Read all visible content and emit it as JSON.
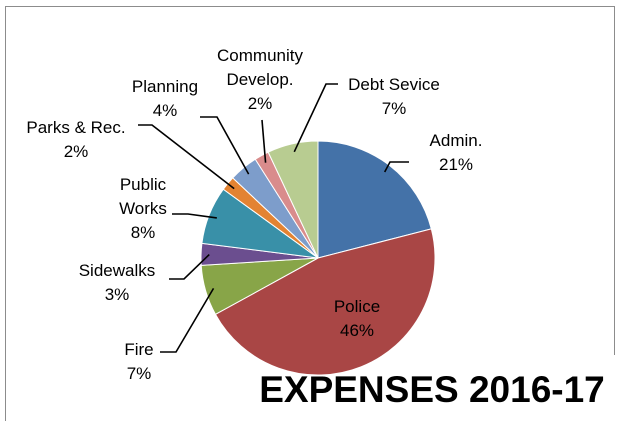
{
  "chart_data": {
    "type": "pie",
    "title": "EXPENSES 2016-17",
    "start_angle_deg": 0,
    "direction": "clockwise",
    "slices": [
      {
        "label": "Admin.",
        "label_lines": [
          "Admin.",
          "21%"
        ],
        "value": 21,
        "color": "#4472A8"
      },
      {
        "label": "Police",
        "label_lines": [
          "Police",
          "46%"
        ],
        "value": 46,
        "color": "#A94645"
      },
      {
        "label": "Fire",
        "label_lines": [
          "Fire",
          "7%"
        ],
        "value": 7,
        "color": "#88A548"
      },
      {
        "label": "Sidewalks",
        "label_lines": [
          "Sidewalks",
          "3%"
        ],
        "value": 3,
        "color": "#6B4E8F"
      },
      {
        "label": "Public Works",
        "label_lines": [
          "Public",
          "Works",
          "8%"
        ],
        "value": 8,
        "color": "#3990A8"
      },
      {
        "label": "Parks & Rec.",
        "label_lines": [
          "Parks & Rec.",
          "2%"
        ],
        "value": 2,
        "color": "#E38332"
      },
      {
        "label": "Planning",
        "label_lines": [
          "Planning",
          "4%"
        ],
        "value": 4,
        "color": "#7D9DCB"
      },
      {
        "label": "Community Develop.",
        "label_lines": [
          "Community",
          "Develop.",
          "2%"
        ],
        "value": 2,
        "color": "#D98C8C"
      },
      {
        "label": "Debt Sevice",
        "label_lines": [
          "Debt Sevice",
          "7%"
        ],
        "value": 7,
        "color": "#B8CC91"
      }
    ]
  }
}
